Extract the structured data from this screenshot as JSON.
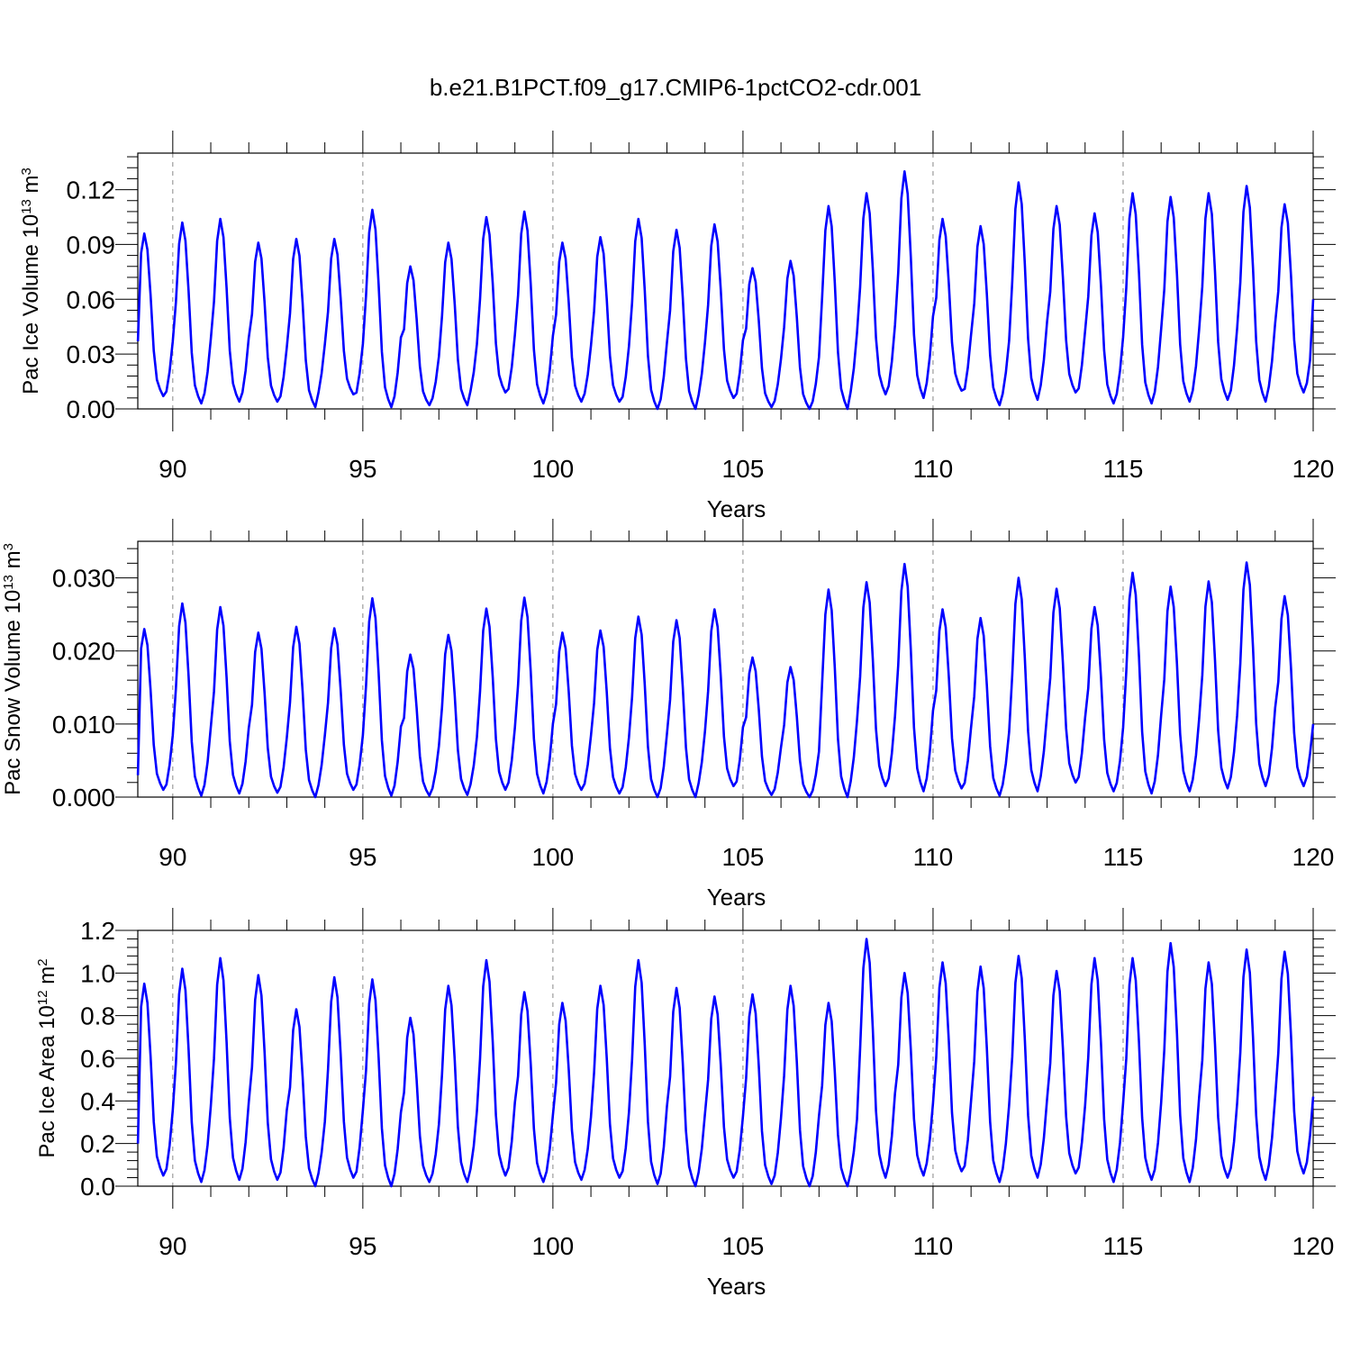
{
  "figure_title": "b.e21.B1PCT.f09_g17.CMIP6-1pctCO2-cdr.001",
  "chart_data": [
    {
      "type": "line",
      "title": "b.e21.B1PCT.f09_g17.CMIP6-1pctCO2-cdr.001",
      "xlabel": "Years",
      "ylabel": {
        "prefix": "Pac Ice Volume 10",
        "exp": "13",
        "unit": " m",
        "unit_exp": "3"
      },
      "xlim": [
        89.08,
        120.0
      ],
      "ylim": [
        0.0,
        0.14
      ],
      "x_ticks": [
        "90",
        "95",
        "100",
        "105",
        "110",
        "115",
        "120"
      ],
      "y_ticks": [
        "0.00",
        "0.03",
        "0.06",
        "0.09",
        "0.12"
      ],
      "y_tick_values": [
        0.0,
        0.03,
        0.06,
        0.09,
        0.12
      ],
      "grid": "dashed vertical lines at major x ticks",
      "line_color": "#0000ff",
      "annual_mar_peaks": [
        0.096,
        0.102,
        0.104,
        0.091,
        0.093,
        0.093,
        0.109,
        0.078,
        0.091,
        0.105,
        0.108,
        0.091,
        0.094,
        0.104,
        0.098,
        0.101,
        0.077,
        0.081,
        0.111,
        0.118,
        0.13,
        0.104,
        0.1,
        0.124,
        0.111,
        0.107,
        0.118,
        0.116,
        0.118,
        0.122,
        0.112
      ],
      "annual_sep_minima": [
        0.007,
        0.003,
        0.004,
        0.004,
        0.001,
        0.008,
        0.001,
        0.002,
        0.002,
        0.009,
        0.003,
        0.004,
        0.004,
        0.0,
        0.0,
        0.006,
        0.001,
        0.0,
        0.0,
        0.008,
        0.006,
        0.01,
        0.002,
        0.005,
        0.009,
        0.003,
        0.003,
        0.004,
        0.005,
        0.004,
        0.009
      ],
      "start_value": 0.037,
      "end_value": 0.06
    },
    {
      "type": "line",
      "xlabel": "Years",
      "ylabel": {
        "prefix": "Pac Snow Volume 10",
        "exp": "13",
        "unit": " m",
        "unit_exp": "3"
      },
      "xlim": [
        89.08,
        120.0
      ],
      "ylim": [
        0.0,
        0.035
      ],
      "x_ticks": [
        "90",
        "95",
        "100",
        "105",
        "110",
        "115",
        "120"
      ],
      "y_ticks": [
        "0.000",
        "0.010",
        "0.020",
        "0.030"
      ],
      "y_tick_values": [
        0.0,
        0.01,
        0.02,
        0.03
      ],
      "grid": "dashed vertical lines at major x ticks",
      "line_color": "#0000ff",
      "annual_mar_peaks": [
        0.023,
        0.0265,
        0.026,
        0.0225,
        0.0233,
        0.0231,
        0.0272,
        0.0195,
        0.0222,
        0.0258,
        0.0273,
        0.0225,
        0.0228,
        0.0247,
        0.0242,
        0.0257,
        0.0191,
        0.0178,
        0.0284,
        0.0294,
        0.0319,
        0.0257,
        0.0245,
        0.03,
        0.0285,
        0.026,
        0.0307,
        0.0288,
        0.0295,
        0.0321,
        0.0275
      ],
      "annual_sep_minima": [
        0.001,
        0.0002,
        0.0005,
        0.0006,
        0.0,
        0.001,
        0.0002,
        0.0002,
        0.0003,
        0.001,
        0.0005,
        0.001,
        0.0005,
        0.0,
        0.0,
        0.0015,
        0.0003,
        0.0,
        0.0,
        0.0015,
        0.0008,
        0.0012,
        0.0002,
        0.0008,
        0.002,
        0.0008,
        0.0005,
        0.0008,
        0.0012,
        0.0015,
        0.0015
      ],
      "start_value": 0.003,
      "end_value": 0.01
    },
    {
      "type": "line",
      "xlabel": "Years",
      "ylabel": {
        "prefix": "Pac Ice Area 10",
        "exp": "12",
        "unit": " m",
        "unit_exp": "2"
      },
      "xlim": [
        89.08,
        120.0
      ],
      "ylim": [
        0.0,
        1.2
      ],
      "x_ticks": [
        "90",
        "95",
        "100",
        "105",
        "110",
        "115",
        "120"
      ],
      "y_ticks": [
        "0.0",
        "0.2",
        "0.4",
        "0.6",
        "0.8",
        "1.0",
        "1.2"
      ],
      "y_tick_values": [
        0.0,
        0.2,
        0.4,
        0.6,
        0.8,
        1.0,
        1.2
      ],
      "grid": "dashed vertical lines at major x ticks",
      "line_color": "#0000ff",
      "annual_mar_peaks": [
        0.95,
        1.02,
        1.07,
        0.99,
        0.83,
        0.98,
        0.97,
        0.79,
        0.94,
        1.06,
        0.91,
        0.86,
        0.94,
        1.06,
        0.93,
        0.89,
        0.9,
        0.94,
        0.86,
        1.16,
        1.0,
        1.05,
        1.03,
        1.08,
        1.01,
        1.07,
        1.07,
        1.14,
        1.05,
        1.11,
        1.1
      ],
      "annual_sep_minima": [
        0.05,
        0.02,
        0.03,
        0.03,
        0.0,
        0.04,
        0.0,
        0.02,
        0.02,
        0.05,
        0.02,
        0.03,
        0.04,
        0.01,
        0.0,
        0.04,
        0.01,
        0.0,
        0.0,
        0.04,
        0.05,
        0.07,
        0.02,
        0.04,
        0.06,
        0.02,
        0.03,
        0.02,
        0.04,
        0.03,
        0.06
      ],
      "start_value": 0.2,
      "end_value": 0.42
    }
  ]
}
